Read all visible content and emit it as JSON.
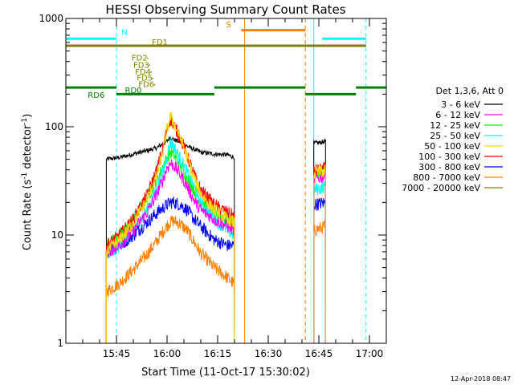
{
  "chart_data": {
    "type": "line",
    "title": "HESSI Observing Summary Count Rates",
    "xlabel": "Start Time (11-Oct-17 15:30:02)",
    "ylabel_main": "Count Rate (s",
    "ylabel_sup1": "-1",
    "ylabel_mid": " detector",
    "ylabel_sup2": "-1",
    "ylabel_end": ")",
    "yscale": "log",
    "ylim": [
      1,
      1000
    ],
    "xlim_minutes": [
      0,
      95
    ],
    "xticks": [
      {
        "t": 15,
        "label": "15:45"
      },
      {
        "t": 30,
        "label": "16:00"
      },
      {
        "t": 45,
        "label": "16:15"
      },
      {
        "t": 60,
        "label": "16:30"
      },
      {
        "t": 75,
        "label": "16:45"
      },
      {
        "t": 90,
        "label": "17:00"
      }
    ],
    "yticks": [
      {
        "v": 1,
        "label": "1"
      },
      {
        "v": 10,
        "label": "10"
      },
      {
        "v": 100,
        "label": "100"
      },
      {
        "v": 1000,
        "label": "1000"
      }
    ],
    "legend_title": "Det 1,3,6, Att 0",
    "legend_position": "right",
    "series": [
      {
        "name": "3 - 6 keV",
        "color": "#000000",
        "segments": [
          {
            "t0": 12,
            "t1": 50,
            "pts": [
              [
                12,
                50
              ],
              [
                16,
                52
              ],
              [
                20,
                56
              ],
              [
                24,
                60
              ],
              [
                27,
                64
              ],
              [
                29,
                70
              ],
              [
                30,
                74
              ],
              [
                31,
                80
              ],
              [
                32,
                76
              ],
              [
                34,
                72
              ],
              [
                36,
                66
              ],
              [
                38,
                62
              ],
              [
                40,
                58
              ],
              [
                44,
                56
              ],
              [
                48,
                55
              ],
              [
                50,
                52
              ]
            ]
          },
          {
            "t0": 73.5,
            "t1": 77,
            "pts": [
              [
                73.5,
                70
              ],
              [
                77,
                73
              ]
            ]
          }
        ]
      },
      {
        "name": "6 - 12 keV",
        "color": "#ff00ff",
        "segments": [
          {
            "t0": 12,
            "t1": 50,
            "pts": [
              [
                12,
                7
              ],
              [
                16,
                8
              ],
              [
                20,
                11
              ],
              [
                24,
                16
              ],
              [
                27,
                24
              ],
              [
                29,
                34
              ],
              [
                30,
                42
              ],
              [
                31,
                46
              ],
              [
                32,
                44
              ],
              [
                34,
                36
              ],
              [
                36,
                28
              ],
              [
                38,
                21
              ],
              [
                40,
                17
              ],
              [
                44,
                14
              ],
              [
                48,
                12
              ],
              [
                50,
                11
              ]
            ]
          },
          {
            "t0": 73.5,
            "t1": 77,
            "pts": [
              [
                73.5,
                33
              ],
              [
                77,
                35
              ]
            ]
          }
        ]
      },
      {
        "name": "12 - 25 keV",
        "color": "#00ff00",
        "segments": [
          {
            "t0": 12,
            "t1": 50,
            "pts": [
              [
                12,
                8
              ],
              [
                16,
                10
              ],
              [
                20,
                14
              ],
              [
                24,
                22
              ],
              [
                27,
                32
              ],
              [
                29,
                44
              ],
              [
                30,
                52
              ],
              [
                31,
                58
              ],
              [
                32,
                55
              ],
              [
                34,
                44
              ],
              [
                36,
                34
              ],
              [
                38,
                26
              ],
              [
                40,
                21
              ],
              [
                44,
                16
              ],
              [
                48,
                14
              ],
              [
                50,
                13
              ]
            ]
          },
          {
            "t0": 73.5,
            "t1": 77,
            "pts": [
              [
                73.5,
                37
              ],
              [
                77,
                39
              ]
            ]
          }
        ]
      },
      {
        "name": "25 - 50 keV",
        "color": "#00ffff",
        "segments": [
          {
            "t0": 12,
            "t1": 50,
            "pts": [
              [
                12,
                6
              ],
              [
                16,
                8
              ],
              [
                20,
                11
              ],
              [
                24,
                17
              ],
              [
                27,
                27
              ],
              [
                29,
                40
              ],
              [
                30,
                55
              ],
              [
                31,
                72
              ],
              [
                32,
                66
              ],
              [
                34,
                50
              ],
              [
                36,
                38
              ],
              [
                38,
                28
              ],
              [
                40,
                20
              ],
              [
                44,
                14
              ],
              [
                48,
                11
              ],
              [
                50,
                10
              ]
            ]
          },
          {
            "t0": 73.5,
            "t1": 77,
            "pts": [
              [
                73.5,
                26
              ],
              [
                77,
                28
              ]
            ]
          }
        ]
      },
      {
        "name": "50 - 100 keV",
        "color": "#ffd700",
        "segments": [
          {
            "t0": 12,
            "t1": 50,
            "pts": [
              [
                12,
                7
              ],
              [
                16,
                9
              ],
              [
                20,
                13
              ],
              [
                24,
                21
              ],
              [
                27,
                36
              ],
              [
                29,
                62
              ],
              [
                30,
                92
              ],
              [
                31,
                125
              ],
              [
                32,
                108
              ],
              [
                34,
                78
              ],
              [
                36,
                52
              ],
              [
                38,
                34
              ],
              [
                40,
                24
              ],
              [
                44,
                17
              ],
              [
                48,
                14
              ],
              [
                50,
                13
              ]
            ]
          },
          {
            "t0": 73.5,
            "t1": 77,
            "pts": [
              [
                73.5,
                37
              ],
              [
                77,
                39
              ]
            ]
          }
        ]
      },
      {
        "name": "100 - 300 keV",
        "color": "#ff0000",
        "segments": [
          {
            "t0": 12,
            "t1": 50,
            "pts": [
              [
                12,
                8
              ],
              [
                16,
                10
              ],
              [
                20,
                14
              ],
              [
                24,
                23
              ],
              [
                27,
                40
              ],
              [
                29,
                68
              ],
              [
                30,
                95
              ],
              [
                31,
                118
              ],
              [
                32,
                104
              ],
              [
                34,
                78
              ],
              [
                36,
                54
              ],
              [
                38,
                36
              ],
              [
                40,
                26
              ],
              [
                44,
                19
              ],
              [
                48,
                16
              ],
              [
                50,
                15
              ]
            ]
          },
          {
            "t0": 73.5,
            "t1": 77,
            "pts": [
              [
                73.5,
                39
              ],
              [
                77,
                41
              ]
            ]
          }
        ]
      },
      {
        "name": "300 - 800 keV",
        "color": "#0000ff",
        "segments": [
          {
            "t0": 12,
            "t1": 50,
            "pts": [
              [
                12,
                7
              ],
              [
                16,
                8
              ],
              [
                20,
                10
              ],
              [
                24,
                13
              ],
              [
                27,
                16
              ],
              [
                29,
                18
              ],
              [
                30,
                19
              ],
              [
                31,
                20
              ],
              [
                32,
                20
              ],
              [
                34,
                19
              ],
              [
                36,
                17
              ],
              [
                38,
                14
              ],
              [
                40,
                12
              ],
              [
                44,
                9
              ],
              [
                48,
                8
              ],
              [
                50,
                8
              ]
            ]
          },
          {
            "t0": 73.5,
            "t1": 77,
            "pts": [
              [
                73.5,
                19
              ],
              [
                77,
                20
              ]
            ]
          }
        ]
      },
      {
        "name": "800 - 7000 keV",
        "color": "#ff8000",
        "segments": [
          {
            "t0": 12,
            "t1": 50,
            "pts": [
              [
                12,
                3
              ],
              [
                16,
                3.6
              ],
              [
                20,
                4.8
              ],
              [
                24,
                6.6
              ],
              [
                27,
                8.8
              ],
              [
                29,
                11
              ],
              [
                30,
                12.2
              ],
              [
                31,
                13.2
              ],
              [
                32,
                13.5
              ],
              [
                34,
                12.6
              ],
              [
                36,
                11
              ],
              [
                38,
                8.6
              ],
              [
                40,
                6.8
              ],
              [
                44,
                5
              ],
              [
                48,
                4
              ],
              [
                50,
                3.5
              ]
            ]
          },
          {
            "t0": 73.5,
            "t1": 77,
            "pts": [
              [
                73.5,
                11
              ],
              [
                77,
                12
              ]
            ]
          }
        ]
      },
      {
        "name": "7000 - 20000 keV",
        "color": "#808000",
        "segments": []
      }
    ],
    "markers": [
      {
        "label": "N",
        "color": "#00ffff",
        "level": 650,
        "spans": [
          [
            0,
            15
          ],
          [
            76,
            89
          ]
        ]
      },
      {
        "label": "S",
        "color": "#ff8000",
        "level": 780,
        "spans": [
          [
            52,
            71
          ]
        ]
      },
      {
        "label": "FD1",
        "color": "#808000",
        "level": 560,
        "spans": [
          [
            0,
            89
          ]
        ]
      },
      {
        "label": "RD6",
        "color": "#008000",
        "level": 230,
        "spans": [
          [
            0,
            15
          ],
          [
            44,
            71
          ],
          [
            86,
            95
          ]
        ]
      },
      {
        "label": "RD0",
        "color": "#008000",
        "level": 200,
        "spans": [
          [
            15,
            44
          ],
          [
            71,
            86
          ]
        ]
      }
    ],
    "fd_labels": [
      "FD2",
      "FD3",
      "FD4",
      "FD5",
      "FD6"
    ],
    "vlines": [
      {
        "t": 15,
        "color": "#00ffff",
        "dash": true
      },
      {
        "t": 53,
        "color": "#ff8000",
        "dash": false
      },
      {
        "t": 71,
        "color": "#ff8000",
        "dash": true
      },
      {
        "t": 73.5,
        "color": "#00ffff",
        "dash": false
      },
      {
        "t": 89,
        "color": "#00ffff",
        "dash": true
      }
    ],
    "timestamp": "12-Apr-2018 08:47"
  }
}
